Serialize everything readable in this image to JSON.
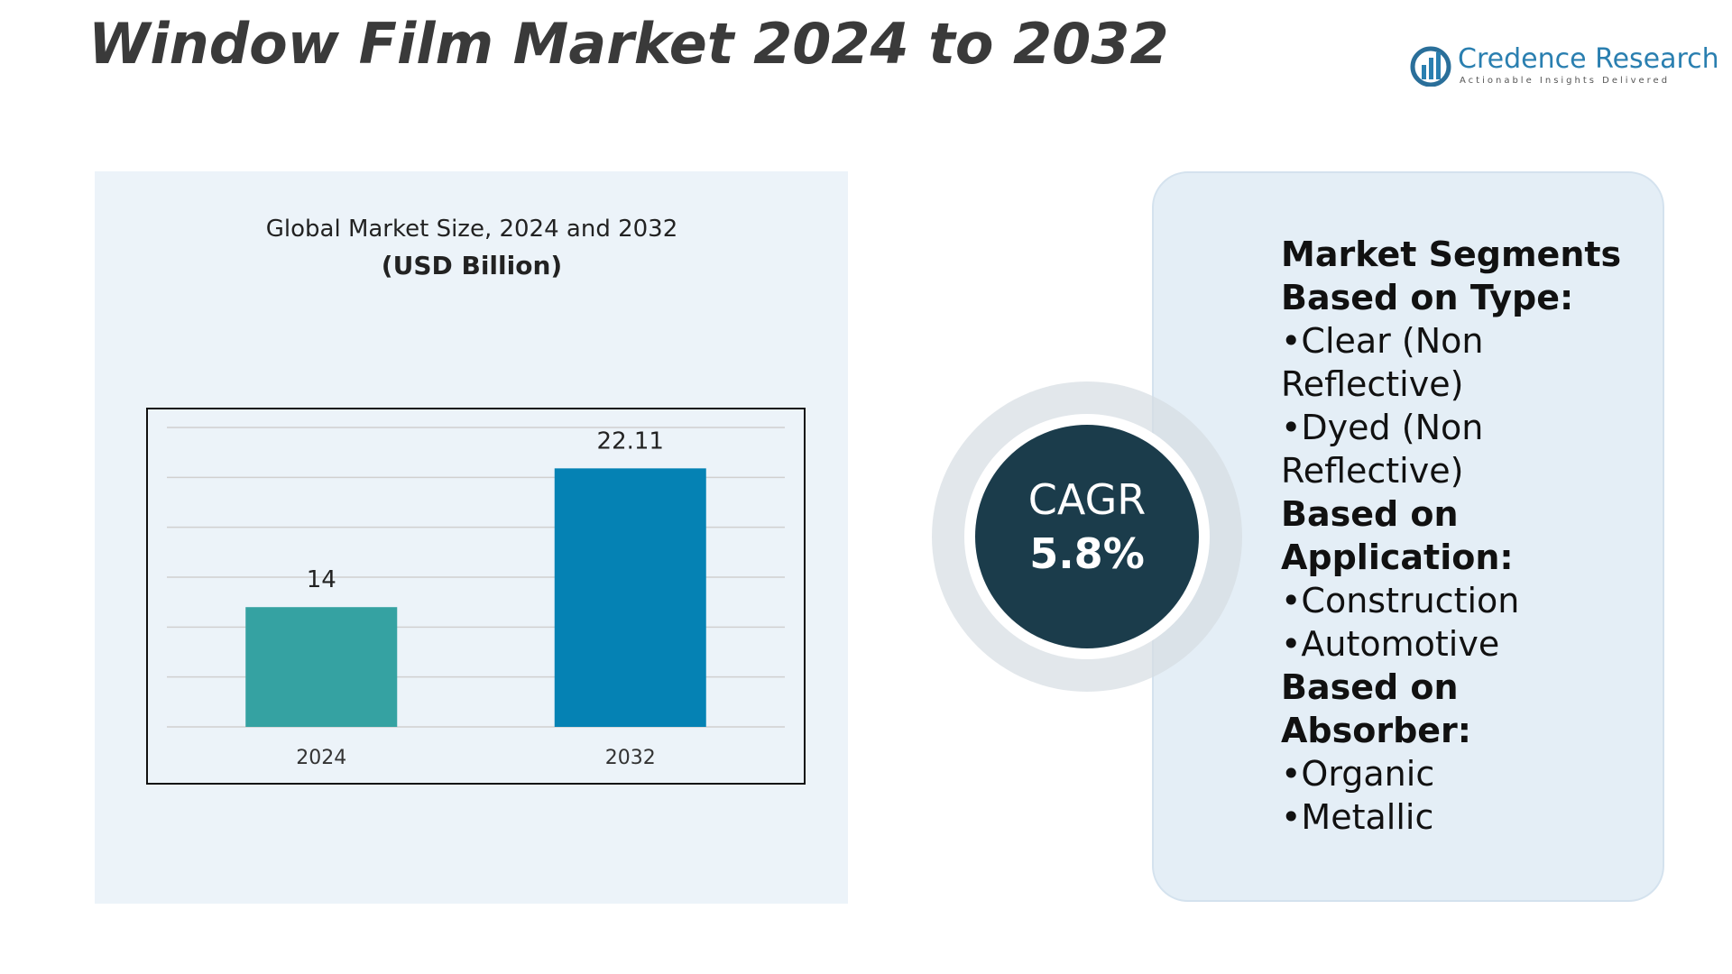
{
  "title": "Window Film Market 2024 to 2032",
  "logo": {
    "name": "Credence Research",
    "tagline": "Actionable Insights Delivered"
  },
  "chart_data": {
    "type": "bar",
    "title": "Global Market Size, 2024 and 2032",
    "subtitle": "(USD Billion)",
    "categories": [
      "2024",
      "2032"
    ],
    "values": [
      14,
      22.11
    ],
    "value_labels": [
      "14",
      "22.11"
    ],
    "colors": [
      "#35a2a2",
      "#0582b4"
    ],
    "ylim": [
      7,
      24.5
    ],
    "grid": true
  },
  "cagr": {
    "label": "CAGR",
    "value": "5.8%"
  },
  "segments": {
    "heading": "Market Segments",
    "groups": [
      {
        "title": "Based on Type:",
        "items": [
          "•Clear (Non Reflective)",
          "•Dyed (Non Reflective)"
        ]
      },
      {
        "title": "Based on Application:",
        "items": [
          "•Construction",
          "•Automotive"
        ]
      },
      {
        "title": "Based on Absorber:",
        "items": [
          "•Organic",
          "•Metallic"
        ]
      }
    ]
  }
}
